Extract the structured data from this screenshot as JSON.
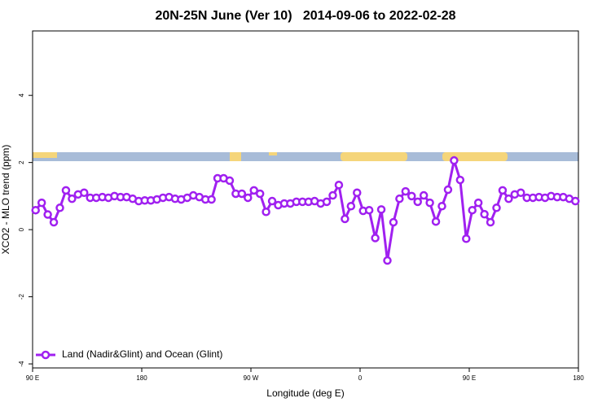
{
  "chart_data": {
    "type": "line",
    "title": "20N-25N June (Ver 10)   2014-09-06 to 2022-02-28",
    "x_label": "Longitude (deg E)",
    "y_label": "XCO2 - MLO trend (ppm)",
    "xlim": [
      90,
      540
    ],
    "ylim": [
      -4.12,
      5.92
    ],
    "xticks": [
      {
        "value": 90,
        "label": "90 E"
      },
      180,
      {
        "value": 270,
        "label": "90 W"
      },
      {
        "value": 360,
        "label": "0"
      },
      {
        "value": 450,
        "label": "90 E"
      },
      {
        "value": 540,
        "label": "180"
      }
    ],
    "yticks": [
      -4,
      -2,
      0,
      2,
      4
    ],
    "legend": "bottomleft",
    "x": [
      92.5,
      97.5,
      102.5,
      107.5,
      112.5,
      117.5,
      122.5,
      127.5,
      132.5,
      137.5,
      142.5,
      147.5,
      152.5,
      157.5,
      162.5,
      167.5,
      172.5,
      177.5,
      182.5,
      187.5,
      192.5,
      197.5,
      202.5,
      207.5,
      212.5,
      217.5,
      222.5,
      227.5,
      232.5,
      237.5,
      242.5,
      247.5,
      252.5,
      257.5,
      262.5,
      267.5,
      272.5,
      277.5,
      282.5,
      287.5,
      292.5,
      297.5,
      302.5,
      307.5,
      312.5,
      317.5,
      322.5,
      327.5,
      332.5,
      337.5,
      342.5,
      347.5,
      352.5,
      357.5,
      362.5,
      367.5,
      372.5,
      377.5,
      382.5,
      387.5,
      392.5,
      397.5,
      402.5,
      407.5,
      412.5,
      417.5,
      422.5,
      427.5,
      432.5,
      437.5,
      442.5,
      447.5,
      452.5,
      457.5,
      462.5,
      467.5,
      472.5,
      477.5,
      482.5,
      487.5,
      492.5,
      497.5,
      502.5,
      507.5,
      512.5,
      517.5,
      522.5,
      527.5,
      532.5,
      537.5
    ],
    "series": [
      {
        "name": "Land (Nadir&Glint) and Ocean (Glint)",
        "color": "#a020f0",
        "values": [
          0.58,
          0.8,
          0.45,
          0.22,
          0.65,
          1.17,
          0.92,
          1.05,
          1.1,
          0.95,
          0.95,
          0.97,
          0.95,
          1.0,
          0.97,
          0.97,
          0.92,
          0.85,
          0.87,
          0.87,
          0.9,
          0.95,
          0.97,
          0.92,
          0.9,
          0.95,
          1.02,
          0.97,
          0.9,
          0.9,
          1.53,
          1.53,
          1.46,
          1.07,
          1.07,
          0.95,
          1.17,
          1.07,
          0.53,
          0.85,
          0.73,
          0.78,
          0.78,
          0.83,
          0.83,
          0.83,
          0.85,
          0.78,
          0.83,
          1.02,
          1.33,
          0.32,
          0.7,
          1.1,
          0.56,
          0.58,
          -0.25,
          0.6,
          -0.92,
          0.22,
          0.92,
          1.14,
          1.0,
          0.83,
          1.02,
          0.8,
          0.24,
          0.7,
          1.19,
          2.06,
          1.48,
          -0.27,
          0.58,
          0.8,
          0.46,
          0.22,
          0.65,
          1.17,
          0.92,
          1.05,
          1.1,
          0.95,
          0.95,
          0.97,
          0.95,
          1.0,
          0.97,
          0.97,
          0.92,
          0.85
        ]
      }
    ]
  }
}
